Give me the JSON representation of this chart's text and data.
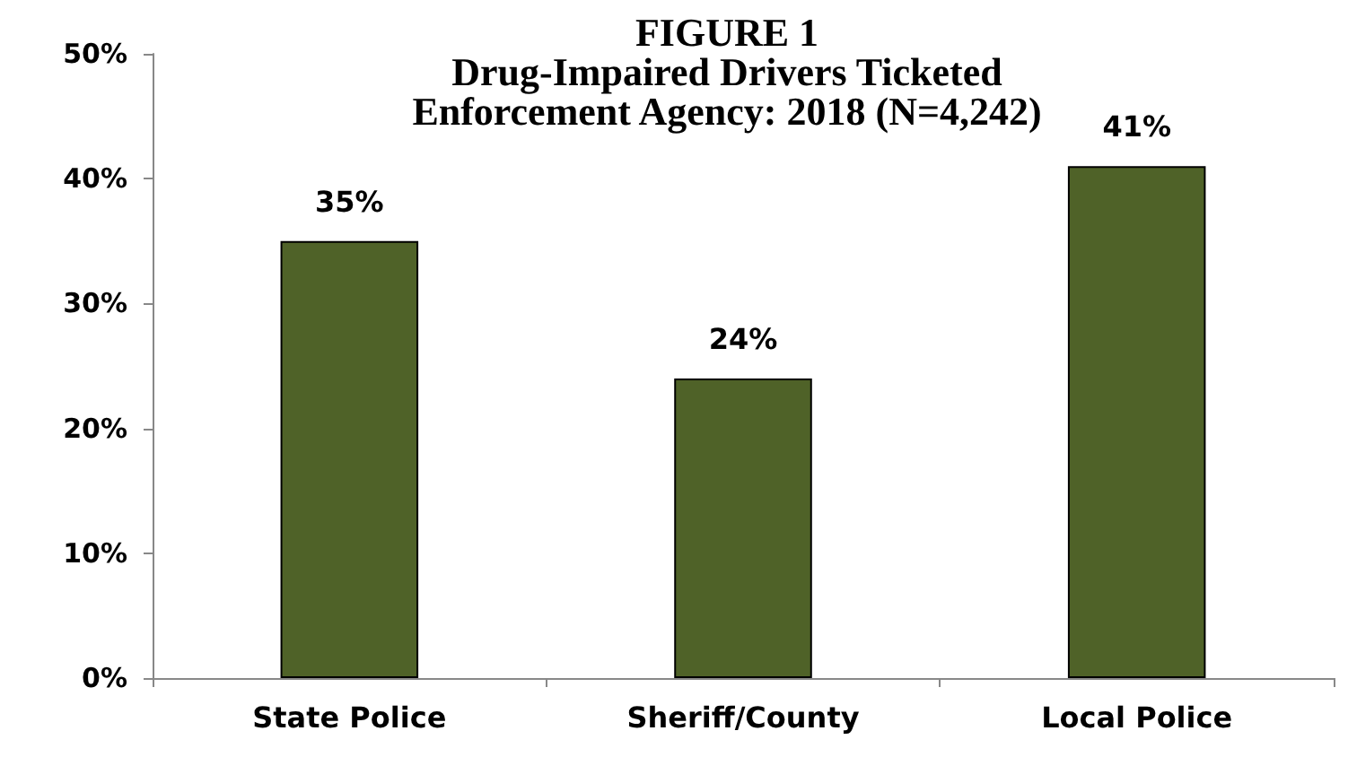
{
  "chart_data": {
    "type": "bar",
    "title": "FIGURE 1\nDrug-Impaired Drivers Ticketed\nEnforcement Agency: 2018 (N=4,242)",
    "categories": [
      "State Police",
      "Sheriff/County",
      "Local Police"
    ],
    "values": [
      35,
      24,
      41
    ],
    "color": "#4f6228",
    "value_labels": [
      "35%",
      "24%",
      "41%"
    ],
    "ylim": [
      0,
      50
    ],
    "yticks": [
      {
        "value": 0,
        "label": "0%"
      },
      {
        "value": 10,
        "label": "10%"
      },
      {
        "value": 20,
        "label": "20%"
      },
      {
        "value": 30,
        "label": "30%"
      },
      {
        "value": 40,
        "label": "40%"
      },
      {
        "value": 50,
        "label": "50%"
      }
    ],
    "grid": false
  }
}
